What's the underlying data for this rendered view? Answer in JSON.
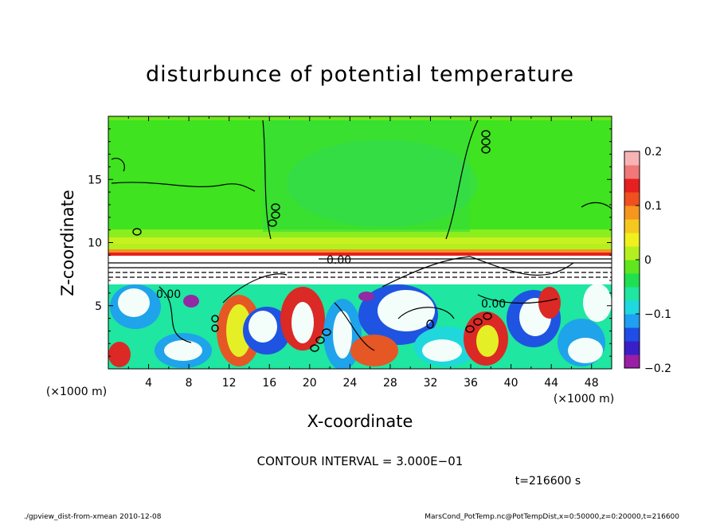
{
  "chart_data": {
    "type": "heatmap",
    "title": "disturbunce of potential temperature",
    "xlabel": "X-coordinate",
    "ylabel": "Z-coordinate",
    "x_unit_left": "(×1000 m)",
    "x_unit_right": "(×1000 m)",
    "xlim": [
      0,
      50
    ],
    "ylim": [
      0,
      20
    ],
    "x_ticks": [
      "4",
      "8",
      "12",
      "16",
      "20",
      "24",
      "28",
      "32",
      "36",
      "40",
      "44",
      "48"
    ],
    "y_ticks": [
      "5",
      "10",
      "15"
    ],
    "colorbar": {
      "range": [
        -0.2,
        0.2
      ],
      "tick_labels": [
        "0.2",
        "0.1",
        "0",
        "−0.1",
        "−0.2"
      ],
      "colors": [
        "#9a1fa6",
        "#3a1fc8",
        "#1f4de6",
        "#1fa0f0",
        "#1fd8e0",
        "#1fe6a0",
        "#1fe050",
        "#5fe61f",
        "#b4f01f",
        "#f0f01f",
        "#f5c81f",
        "#f5961f",
        "#f0501f",
        "#e61f1f",
        "#f07878",
        "#f8b4b4"
      ]
    },
    "contour_labels": [
      "0.00",
      "0.00",
      "0.00"
    ],
    "contour_interval": "CONTOUR INTERVAL = 3.000E−01",
    "time_label": "t=216600 s"
  },
  "footer": {
    "left": "./gpview_dist-from-xmean  2010-12-08",
    "right": "MarsCond_PotTemp.nc@PotTempDist,x=0:50000,z=0:20000,t=216600"
  }
}
